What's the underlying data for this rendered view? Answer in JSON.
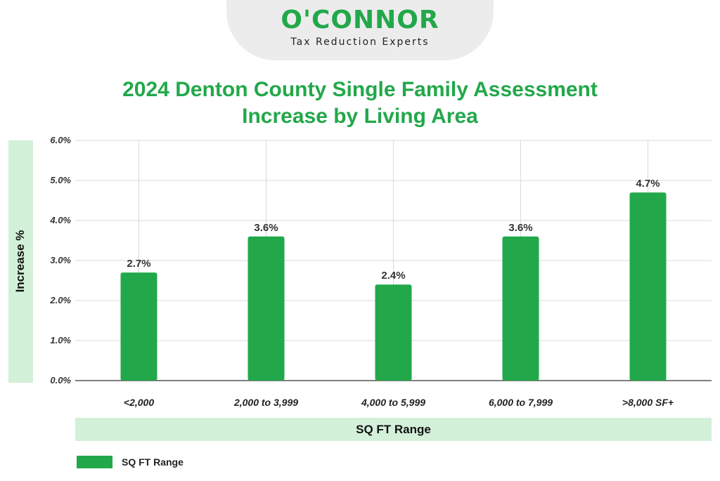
{
  "brand": {
    "name": "O'CONNOR",
    "tagline": "Tax Reduction Experts",
    "color": "#22a84a"
  },
  "chart_data": {
    "type": "bar",
    "title": "2024 Denton County Single Family Assessment Increase by Living Area",
    "xlabel": "SQ FT Range",
    "ylabel": "Increase %",
    "categories": [
      "<2,000",
      "2,000 to 3,999",
      "4,000 to 5,999",
      "6,000 to 7,999",
      ">8,000 SF+"
    ],
    "series": [
      {
        "name": "SQ FT Range",
        "values": [
          2.7,
          3.6,
          2.4,
          3.6,
          4.7
        ],
        "data_labels": [
          "2.7%",
          "3.6%",
          "2.4%",
          "3.6%",
          "4.7%"
        ],
        "color": "#22a84a"
      }
    ],
    "ylim": [
      0,
      6
    ],
    "yticks": [
      0,
      1,
      2,
      3,
      4,
      5,
      6
    ],
    "ytick_labels": [
      "0.0%",
      "1.0%",
      "2.0%",
      "3.0%",
      "4.0%",
      "5.0%",
      "6.0%"
    ],
    "grid": true,
    "legend": "bottom-left",
    "axis_band_color": "#d3f0d9"
  }
}
